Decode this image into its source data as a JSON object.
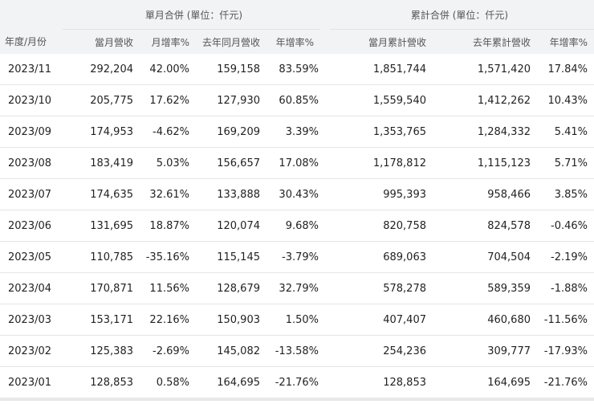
{
  "table": {
    "group_headers": {
      "monthly": "單月合併 (單位：仟元)",
      "cumulative": "累計合併 (單位：仟元)"
    },
    "columns": [
      "年度/月份",
      "當月營收",
      "月增率%",
      "去年同月營收",
      "年增率%",
      "當月累計營收",
      "去年累計營收",
      "年增率%"
    ],
    "rows": [
      [
        "2023/11",
        "292,204",
        "42.00%",
        "159,158",
        "83.59%",
        "1,851,744",
        "1,571,420",
        "17.84%"
      ],
      [
        "2023/10",
        "205,775",
        "17.62%",
        "127,930",
        "60.85%",
        "1,559,540",
        "1,412,262",
        "10.43%"
      ],
      [
        "2023/09",
        "174,953",
        "-4.62%",
        "169,209",
        "3.39%",
        "1,353,765",
        "1,284,332",
        "5.41%"
      ],
      [
        "2023/08",
        "183,419",
        "5.03%",
        "156,657",
        "17.08%",
        "1,178,812",
        "1,115,123",
        "5.71%"
      ],
      [
        "2023/07",
        "174,635",
        "32.61%",
        "133,888",
        "30.43%",
        "995,393",
        "958,466",
        "3.85%"
      ],
      [
        "2023/06",
        "131,695",
        "18.87%",
        "120,074",
        "9.68%",
        "820,758",
        "824,578",
        "-0.46%"
      ],
      [
        "2023/05",
        "110,785",
        "-35.16%",
        "115,145",
        "-3.79%",
        "689,063",
        "704,504",
        "-2.19%"
      ],
      [
        "2023/04",
        "170,871",
        "11.56%",
        "128,679",
        "32.79%",
        "578,278",
        "589,359",
        "-1.88%"
      ],
      [
        "2023/03",
        "153,171",
        "22.16%",
        "150,903",
        "1.50%",
        "407,407",
        "460,680",
        "-11.56%"
      ],
      [
        "2023/02",
        "125,383",
        "-2.69%",
        "145,082",
        "-13.58%",
        "254,236",
        "309,777",
        "-17.93%"
      ],
      [
        "2023/01",
        "128,853",
        "0.58%",
        "164,695",
        "-21.76%",
        "128,853",
        "164,695",
        "-21.76%"
      ]
    ]
  }
}
